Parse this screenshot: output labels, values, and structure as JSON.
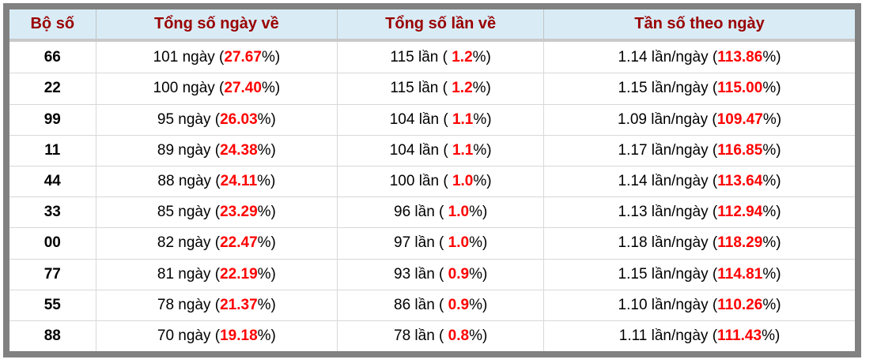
{
  "colors": {
    "frame_border": "#818181",
    "header_bg": "#d9ecf6",
    "header_text": "#990000",
    "highlight_red": "#ff0000",
    "body_text": "#000000",
    "grid_line": "#d8d8d8"
  },
  "table": {
    "columns": [
      {
        "label": "Bộ số"
      },
      {
        "label": "Tổng số ngày về"
      },
      {
        "label": "Tổng số lần về"
      },
      {
        "label": "Tần số theo ngày"
      }
    ],
    "units": {
      "days": "ngày",
      "times": "lần",
      "freq": "lần/ngày"
    },
    "rows": [
      {
        "pair": "66",
        "days": "101",
        "days_pct": "27.67",
        "times": "115",
        "times_pct": "1.2",
        "freq": "1.14",
        "freq_pct": "113.86"
      },
      {
        "pair": "22",
        "days": "100",
        "days_pct": "27.40",
        "times": "115",
        "times_pct": "1.2",
        "freq": "1.15",
        "freq_pct": "115.00"
      },
      {
        "pair": "99",
        "days": "95",
        "days_pct": "26.03",
        "times": "104",
        "times_pct": "1.1",
        "freq": "1.09",
        "freq_pct": "109.47"
      },
      {
        "pair": "11",
        "days": "89",
        "days_pct": "24.38",
        "times": "104",
        "times_pct": "1.1",
        "freq": "1.17",
        "freq_pct": "116.85"
      },
      {
        "pair": "44",
        "days": "88",
        "days_pct": "24.11",
        "times": "100",
        "times_pct": "1.0",
        "freq": "1.14",
        "freq_pct": "113.64"
      },
      {
        "pair": "33",
        "days": "85",
        "days_pct": "23.29",
        "times": "96",
        "times_pct": "1.0",
        "freq": "1.13",
        "freq_pct": "112.94"
      },
      {
        "pair": "00",
        "days": "82",
        "days_pct": "22.47",
        "times": "97",
        "times_pct": "1.0",
        "freq": "1.18",
        "freq_pct": "118.29"
      },
      {
        "pair": "77",
        "days": "81",
        "days_pct": "22.19",
        "times": "93",
        "times_pct": "0.9",
        "freq": "1.15",
        "freq_pct": "114.81"
      },
      {
        "pair": "55",
        "days": "78",
        "days_pct": "21.37",
        "times": "86",
        "times_pct": "0.9",
        "freq": "1.10",
        "freq_pct": "110.26"
      },
      {
        "pair": "88",
        "days": "70",
        "days_pct": "19.18",
        "times": "78",
        "times_pct": "0.8",
        "freq": "1.11",
        "freq_pct": "111.43"
      }
    ]
  }
}
